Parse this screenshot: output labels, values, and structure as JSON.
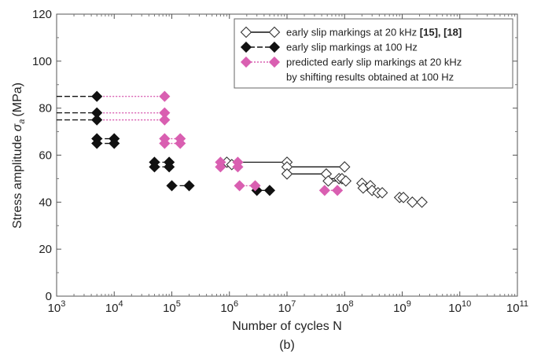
{
  "chart_data": {
    "type": "scatter",
    "title": "",
    "caption": "(b)",
    "xlabel": "Number of cycles N",
    "ylabel": "Stress amplitude",
    "ylabel_symbol": "σ",
    "ylabel_subscript": "a",
    "ylabel_unit": "(MPa)",
    "xscale": "log",
    "xlim": [
      1000,
      100000000000
    ],
    "ylim": [
      0,
      120
    ],
    "x_ticks": [
      {
        "base": "10",
        "exp": "3"
      },
      {
        "base": "10",
        "exp": "4"
      },
      {
        "base": "10",
        "exp": "5"
      },
      {
        "base": "10",
        "exp": "6"
      },
      {
        "base": "10",
        "exp": "7"
      },
      {
        "base": "10",
        "exp": "8"
      },
      {
        "base": "10",
        "exp": "9"
      },
      {
        "base": "10",
        "exp": "10"
      },
      {
        "base": "10",
        "exp": "11"
      }
    ],
    "y_ticks": [
      "0",
      "20",
      "40",
      "60",
      "80",
      "100",
      "120"
    ],
    "grid": false,
    "legend_position": "top-right",
    "legend": [
      {
        "label": "early slip markings at 20 kHz ",
        "refs": "[15], [18]",
        "series": "20kHz"
      },
      {
        "label": "early slip markings at 100 Hz",
        "refs": "",
        "series": "100Hz"
      },
      {
        "label": "predicted early slip markings at 20 kHz",
        "refs": "",
        "series": "pred"
      },
      {
        "label": "by shifting results obtained at 100 Hz",
        "refs": "",
        "series": ""
      }
    ],
    "series": [
      {
        "name": "early slip markings at 20 kHz [15], [18]",
        "marker": "open-diamond",
        "color": "#333333",
        "line": "solid",
        "line_color": "#111111",
        "segments": [
          [
            [
              900000,
              57
            ],
            [
              10000000,
              57
            ]
          ],
          [
            [
              10000000,
              55
            ],
            [
              100000000,
              55
            ]
          ],
          [
            [
              10000000,
              52
            ],
            [
              50000000,
              52
            ]
          ],
          [
            [
              50000000,
              50
            ],
            [
              100000000,
              50
            ]
          ],
          [
            [
              50000000,
              49
            ],
            [
              100000000,
              49
            ]
          ]
        ],
        "points": [
          [
            900000,
            57
          ],
          [
            1100000,
            56
          ],
          [
            10000000,
            57
          ],
          [
            10000000,
            55
          ],
          [
            10000000,
            52
          ],
          [
            48000000,
            52
          ],
          [
            52000000,
            49
          ],
          [
            80000000,
            50
          ],
          [
            90000000,
            50
          ],
          [
            100000000,
            55
          ],
          [
            105000000,
            49
          ],
          [
            200000000,
            48
          ],
          [
            210000000,
            46
          ],
          [
            280000000,
            47
          ],
          [
            300000000,
            45
          ],
          [
            380000000,
            44
          ],
          [
            450000000,
            44
          ],
          [
            900000000,
            42
          ],
          [
            1050000000,
            42
          ],
          [
            1500000000,
            40
          ],
          [
            2200000000,
            40
          ]
        ]
      },
      {
        "name": "early slip markings at 100 Hz",
        "marker": "filled-diamond",
        "color": "#111111",
        "line": "dash",
        "line_color": "#111111",
        "segments": [
          [
            [
              1000,
              85
            ],
            [
              5000,
              85
            ]
          ],
          [
            [
              1000,
              78
            ],
            [
              5000,
              78
            ]
          ],
          [
            [
              1000,
              75
            ],
            [
              5000,
              75
            ]
          ],
          [
            [
              5000,
              67
            ],
            [
              10000,
              67
            ]
          ],
          [
            [
              5000,
              65
            ],
            [
              10000,
              65
            ]
          ],
          [
            [
              50000,
              57
            ],
            [
              90000,
              57
            ]
          ],
          [
            [
              50000,
              55
            ],
            [
              90000,
              55
            ]
          ],
          [
            [
              100000,
              47
            ],
            [
              200000,
              47
            ]
          ],
          [
            [
              2500000,
              45
            ],
            [
              5000000,
              45
            ]
          ]
        ],
        "points": [
          [
            5000,
            85
          ],
          [
            5000,
            78
          ],
          [
            5000,
            75
          ],
          [
            5000,
            67
          ],
          [
            10000,
            67
          ],
          [
            5000,
            65
          ],
          [
            10000,
            65
          ],
          [
            50000,
            57
          ],
          [
            90000,
            57
          ],
          [
            50000,
            55
          ],
          [
            90000,
            55
          ],
          [
            100000,
            47
          ],
          [
            200000,
            47
          ],
          [
            3000000,
            45
          ],
          [
            5000000,
            45
          ]
        ]
      },
      {
        "name": "predicted early slip markings at 20 kHz by shifting results obtained at 100 Hz",
        "marker": "filled-diamond",
        "color": "#d95fb1",
        "line": "dot",
        "line_color": "#d95fb1",
        "segments": [
          [
            [
              5000,
              85
            ],
            [
              75000,
              85
            ]
          ],
          [
            [
              5000,
              78
            ],
            [
              75000,
              78
            ]
          ],
          [
            [
              5000,
              75
            ],
            [
              75000,
              75
            ]
          ],
          [
            [
              75000,
              67
            ],
            [
              140000,
              67
            ]
          ],
          [
            [
              75000,
              65
            ],
            [
              140000,
              65
            ]
          ],
          [
            [
              700000,
              57
            ],
            [
              1400000,
              57
            ]
          ],
          [
            [
              700000,
              55
            ],
            [
              1400000,
              55
            ]
          ],
          [
            [
              1500000,
              47
            ],
            [
              3000000,
              47
            ]
          ],
          [
            [
              45000000,
              45
            ],
            [
              75000000,
              45
            ]
          ]
        ],
        "points": [
          [
            75000,
            85
          ],
          [
            75000,
            78
          ],
          [
            75000,
            75
          ],
          [
            75000,
            67
          ],
          [
            140000,
            67
          ],
          [
            75000,
            65
          ],
          [
            140000,
            65
          ],
          [
            700000,
            57
          ],
          [
            1400000,
            57
          ],
          [
            700000,
            55
          ],
          [
            1400000,
            55
          ],
          [
            1500000,
            47
          ],
          [
            2800000,
            47
          ],
          [
            45000000,
            45
          ],
          [
            75000000,
            45
          ]
        ]
      }
    ]
  }
}
